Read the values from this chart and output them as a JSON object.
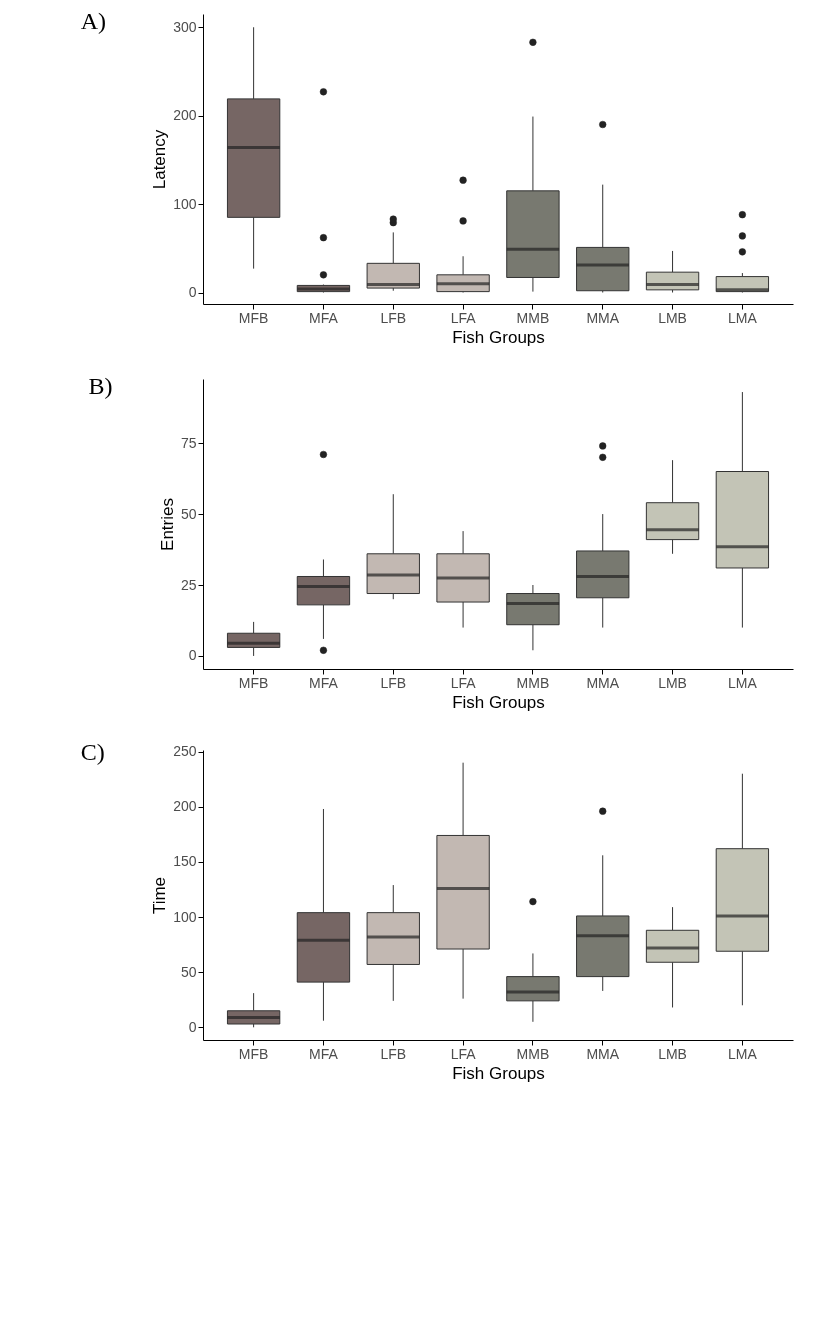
{
  "chart_data": [
    {
      "type": "box",
      "title": "A)",
      "xlabel": "Fish Groups",
      "ylabel": "Latency",
      "categories": [
        "MFB",
        "MFA",
        "LFB",
        "LFA",
        "MMB",
        "MMA",
        "LMB",
        "LMA"
      ],
      "colors": [
        "#766664",
        "#766664",
        "#c2b8b2",
        "#c2b8b2",
        "#787970",
        "#787970",
        "#c3c4b6",
        "#c3c4b6"
      ],
      "ylim": [
        -13,
        315
      ],
      "yticks": [
        0,
        100,
        200,
        300
      ],
      "boxes": [
        {
          "low": 27,
          "q1": 85,
          "median": 164,
          "q3": 219,
          "high": 300
        },
        {
          "low": 0,
          "q1": 1,
          "median": 4,
          "q3": 8,
          "high": 9,
          "outliers": [
            20,
            62,
            227
          ]
        },
        {
          "low": 2,
          "q1": 5,
          "median": 9,
          "q3": 33,
          "high": 68,
          "outliers": [
            79,
            83
          ]
        },
        {
          "low": 0,
          "q1": 1,
          "median": 10,
          "q3": 20,
          "high": 41,
          "outliers": [
            81,
            127
          ]
        },
        {
          "low": 1,
          "q1": 17,
          "median": 49,
          "q3": 115,
          "high": 199,
          "outliers": [
            283
          ]
        },
        {
          "low": 0,
          "q1": 2,
          "median": 31,
          "q3": 51,
          "high": 122,
          "outliers": [
            190
          ]
        },
        {
          "low": 0,
          "q1": 3,
          "median": 9,
          "q3": 23,
          "high": 47
        },
        {
          "low": 0,
          "q1": 1,
          "median": 3,
          "q3": 18,
          "high": 22,
          "outliers": [
            46,
            64,
            88
          ]
        }
      ]
    },
    {
      "type": "box",
      "title": "B)",
      "xlabel": "Fish Groups",
      "ylabel": "Entries",
      "categories": [
        "MFB",
        "MFA",
        "LFB",
        "LFA",
        "MMB",
        "MMA",
        "LMB",
        "LMA"
      ],
      "colors": [
        "#766664",
        "#766664",
        "#c2b8b2",
        "#c2b8b2",
        "#787970",
        "#787970",
        "#c3c4b6",
        "#c3c4b6"
      ],
      "ylim": [
        -4.6,
        97.6
      ],
      "yticks": [
        0,
        25,
        50,
        75
      ],
      "boxes": [
        {
          "low": 0,
          "q1": 3,
          "median": 4.5,
          "q3": 8,
          "high": 12
        },
        {
          "low": 6,
          "q1": 18,
          "median": 24.5,
          "q3": 28,
          "high": 34,
          "outliers": [
            2,
            71
          ]
        },
        {
          "low": 20,
          "q1": 22,
          "median": 28.5,
          "q3": 36,
          "high": 57
        },
        {
          "low": 10,
          "q1": 19,
          "median": 27.5,
          "q3": 36,
          "high": 44
        },
        {
          "low": 2,
          "q1": 11,
          "median": 18.5,
          "q3": 22,
          "high": 25
        },
        {
          "low": 10,
          "q1": 20.5,
          "median": 28,
          "q3": 37,
          "high": 50,
          "outliers": [
            70,
            74
          ]
        },
        {
          "low": 36,
          "q1": 41,
          "median": 44.5,
          "q3": 54,
          "high": 69
        },
        {
          "low": 10,
          "q1": 31,
          "median": 38.5,
          "q3": 65,
          "high": 93
        }
      ]
    },
    {
      "type": "box",
      "title": "C)",
      "xlabel": "Fish Groups",
      "ylabel": "Time",
      "categories": [
        "MFB",
        "MFA",
        "LFB",
        "LFA",
        "MMB",
        "MMA",
        "LMB",
        "LMA"
      ],
      "colors": [
        "#766664",
        "#766664",
        "#c2b8b2",
        "#c2b8b2",
        "#787970",
        "#787970",
        "#c3c4b6",
        "#c3c4b6"
      ],
      "ylim": [
        -11.5,
        251.5
      ],
      "yticks": [
        0,
        50,
        100,
        150,
        200,
        250
      ],
      "boxes": [
        {
          "low": 0,
          "q1": 3,
          "median": 9,
          "q3": 15,
          "high": 31
        },
        {
          "low": 6,
          "q1": 41,
          "median": 79,
          "q3": 104,
          "high": 198
        },
        {
          "low": 24,
          "q1": 57,
          "median": 82,
          "q3": 104,
          "high": 129
        },
        {
          "low": 26,
          "q1": 71,
          "median": 126,
          "q3": 174,
          "high": 240
        },
        {
          "low": 5,
          "q1": 24,
          "median": 32,
          "q3": 46,
          "high": 67,
          "outliers": [
            114
          ]
        },
        {
          "low": 33,
          "q1": 46,
          "median": 83,
          "q3": 101,
          "high": 156,
          "outliers": [
            196
          ]
        },
        {
          "low": 18,
          "q1": 59,
          "median": 72,
          "q3": 88,
          "high": 109
        },
        {
          "low": 20,
          "q1": 69,
          "median": 101,
          "q3": 162,
          "high": 230
        }
      ]
    }
  ]
}
